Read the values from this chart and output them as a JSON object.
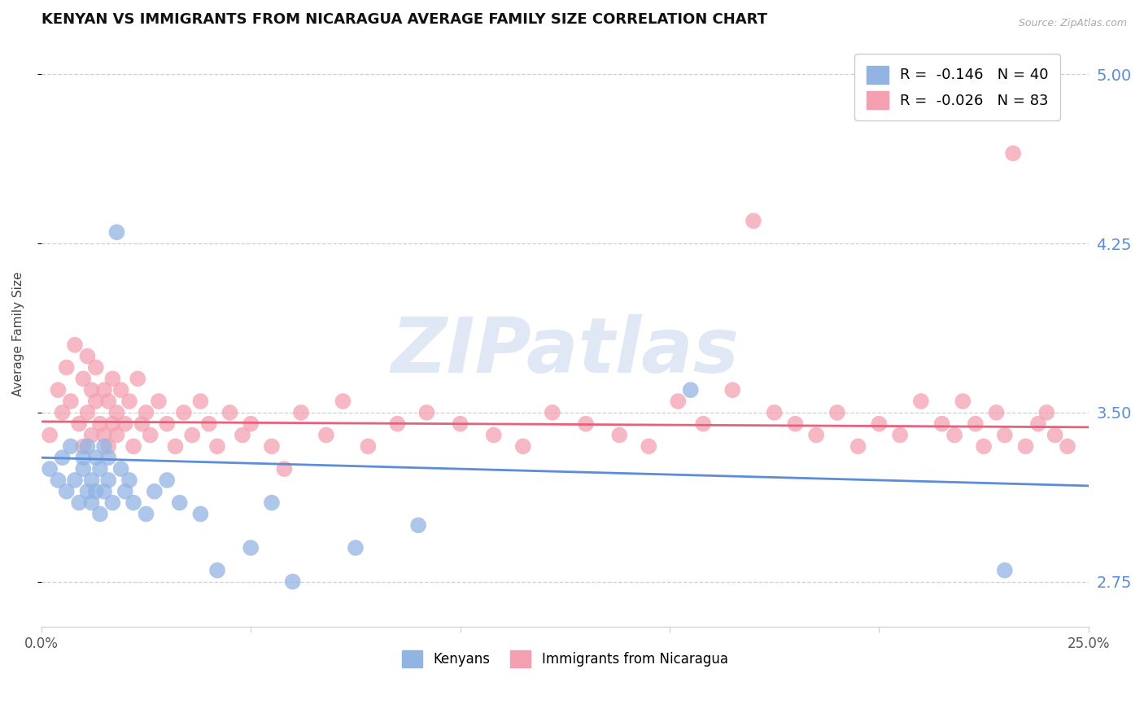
{
  "title": "KENYAN VS IMMIGRANTS FROM NICARAGUA AVERAGE FAMILY SIZE CORRELATION CHART",
  "source_text": "Source: ZipAtlas.com",
  "ylabel": "Average Family Size",
  "xlim": [
    0.0,
    0.25
  ],
  "ylim": [
    2.55,
    5.15
  ],
  "yticks": [
    2.75,
    3.5,
    4.25,
    5.0
  ],
  "xticks": [
    0.0,
    0.05,
    0.1,
    0.15,
    0.2,
    0.25
  ],
  "xticklabels": [
    "0.0%",
    "",
    "",
    "",
    "",
    "25.0%"
  ],
  "yticklabels": [
    "2.75",
    "3.50",
    "4.25",
    "5.00"
  ],
  "blue_color": "#92b4e3",
  "pink_color": "#f4a0b0",
  "blue_line_color": "#5b8dd9",
  "pink_line_color": "#e8607a",
  "legend_blue_label": "R =  -0.146   N = 40",
  "legend_pink_label": "R =  -0.026   N = 83",
  "legend_kenyans": "Kenyans",
  "legend_nicaragua": "Immigrants from Nicaragua",
  "watermark": "ZIPatlas",
  "title_fontsize": 13,
  "axis_label_fontsize": 11,
  "tick_fontsize": 12,
  "right_tick_color": "#5b8dd9",
  "blue_scatter_x": [
    0.002,
    0.004,
    0.005,
    0.006,
    0.007,
    0.008,
    0.009,
    0.01,
    0.01,
    0.011,
    0.011,
    0.012,
    0.012,
    0.013,
    0.013,
    0.014,
    0.014,
    0.015,
    0.015,
    0.016,
    0.016,
    0.017,
    0.018,
    0.019,
    0.02,
    0.021,
    0.022,
    0.025,
    0.027,
    0.03,
    0.033,
    0.038,
    0.042,
    0.05,
    0.055,
    0.06,
    0.075,
    0.09,
    0.155,
    0.23
  ],
  "blue_scatter_y": [
    3.25,
    3.2,
    3.3,
    3.15,
    3.35,
    3.2,
    3.1,
    3.3,
    3.25,
    3.15,
    3.35,
    3.1,
    3.2,
    3.15,
    3.3,
    3.25,
    3.05,
    3.35,
    3.15,
    3.2,
    3.3,
    3.1,
    4.3,
    3.25,
    3.15,
    3.2,
    3.1,
    3.05,
    3.15,
    3.2,
    3.1,
    3.05,
    2.8,
    2.9,
    3.1,
    2.75,
    2.9,
    3.0,
    3.6,
    2.8
  ],
  "pink_scatter_x": [
    0.002,
    0.004,
    0.005,
    0.006,
    0.007,
    0.008,
    0.009,
    0.01,
    0.01,
    0.011,
    0.011,
    0.012,
    0.012,
    0.013,
    0.013,
    0.014,
    0.015,
    0.015,
    0.016,
    0.016,
    0.017,
    0.017,
    0.018,
    0.018,
    0.019,
    0.02,
    0.021,
    0.022,
    0.023,
    0.024,
    0.025,
    0.026,
    0.028,
    0.03,
    0.032,
    0.034,
    0.036,
    0.038,
    0.04,
    0.042,
    0.045,
    0.048,
    0.05,
    0.055,
    0.058,
    0.062,
    0.068,
    0.072,
    0.078,
    0.085,
    0.092,
    0.1,
    0.108,
    0.115,
    0.122,
    0.13,
    0.138,
    0.145,
    0.152,
    0.158,
    0.165,
    0.17,
    0.175,
    0.18,
    0.185,
    0.19,
    0.195,
    0.2,
    0.205,
    0.21,
    0.215,
    0.218,
    0.22,
    0.223,
    0.225,
    0.228,
    0.23,
    0.232,
    0.235,
    0.238,
    0.24,
    0.242,
    0.245
  ],
  "pink_scatter_y": [
    3.4,
    3.6,
    3.5,
    3.7,
    3.55,
    3.8,
    3.45,
    3.65,
    3.35,
    3.75,
    3.5,
    3.6,
    3.4,
    3.7,
    3.55,
    3.45,
    3.6,
    3.4,
    3.55,
    3.35,
    3.65,
    3.45,
    3.5,
    3.4,
    3.6,
    3.45,
    3.55,
    3.35,
    3.65,
    3.45,
    3.5,
    3.4,
    3.55,
    3.45,
    3.35,
    3.5,
    3.4,
    3.55,
    3.45,
    3.35,
    3.5,
    3.4,
    3.45,
    3.35,
    3.25,
    3.5,
    3.4,
    3.55,
    3.35,
    3.45,
    3.5,
    3.45,
    3.4,
    3.35,
    3.5,
    3.45,
    3.4,
    3.35,
    3.55,
    3.45,
    3.6,
    4.35,
    3.5,
    3.45,
    3.4,
    3.5,
    3.35,
    3.45,
    3.4,
    3.55,
    3.45,
    3.4,
    3.55,
    3.45,
    3.35,
    3.5,
    3.4,
    4.65,
    3.35,
    3.45,
    3.5,
    3.4,
    3.35
  ]
}
